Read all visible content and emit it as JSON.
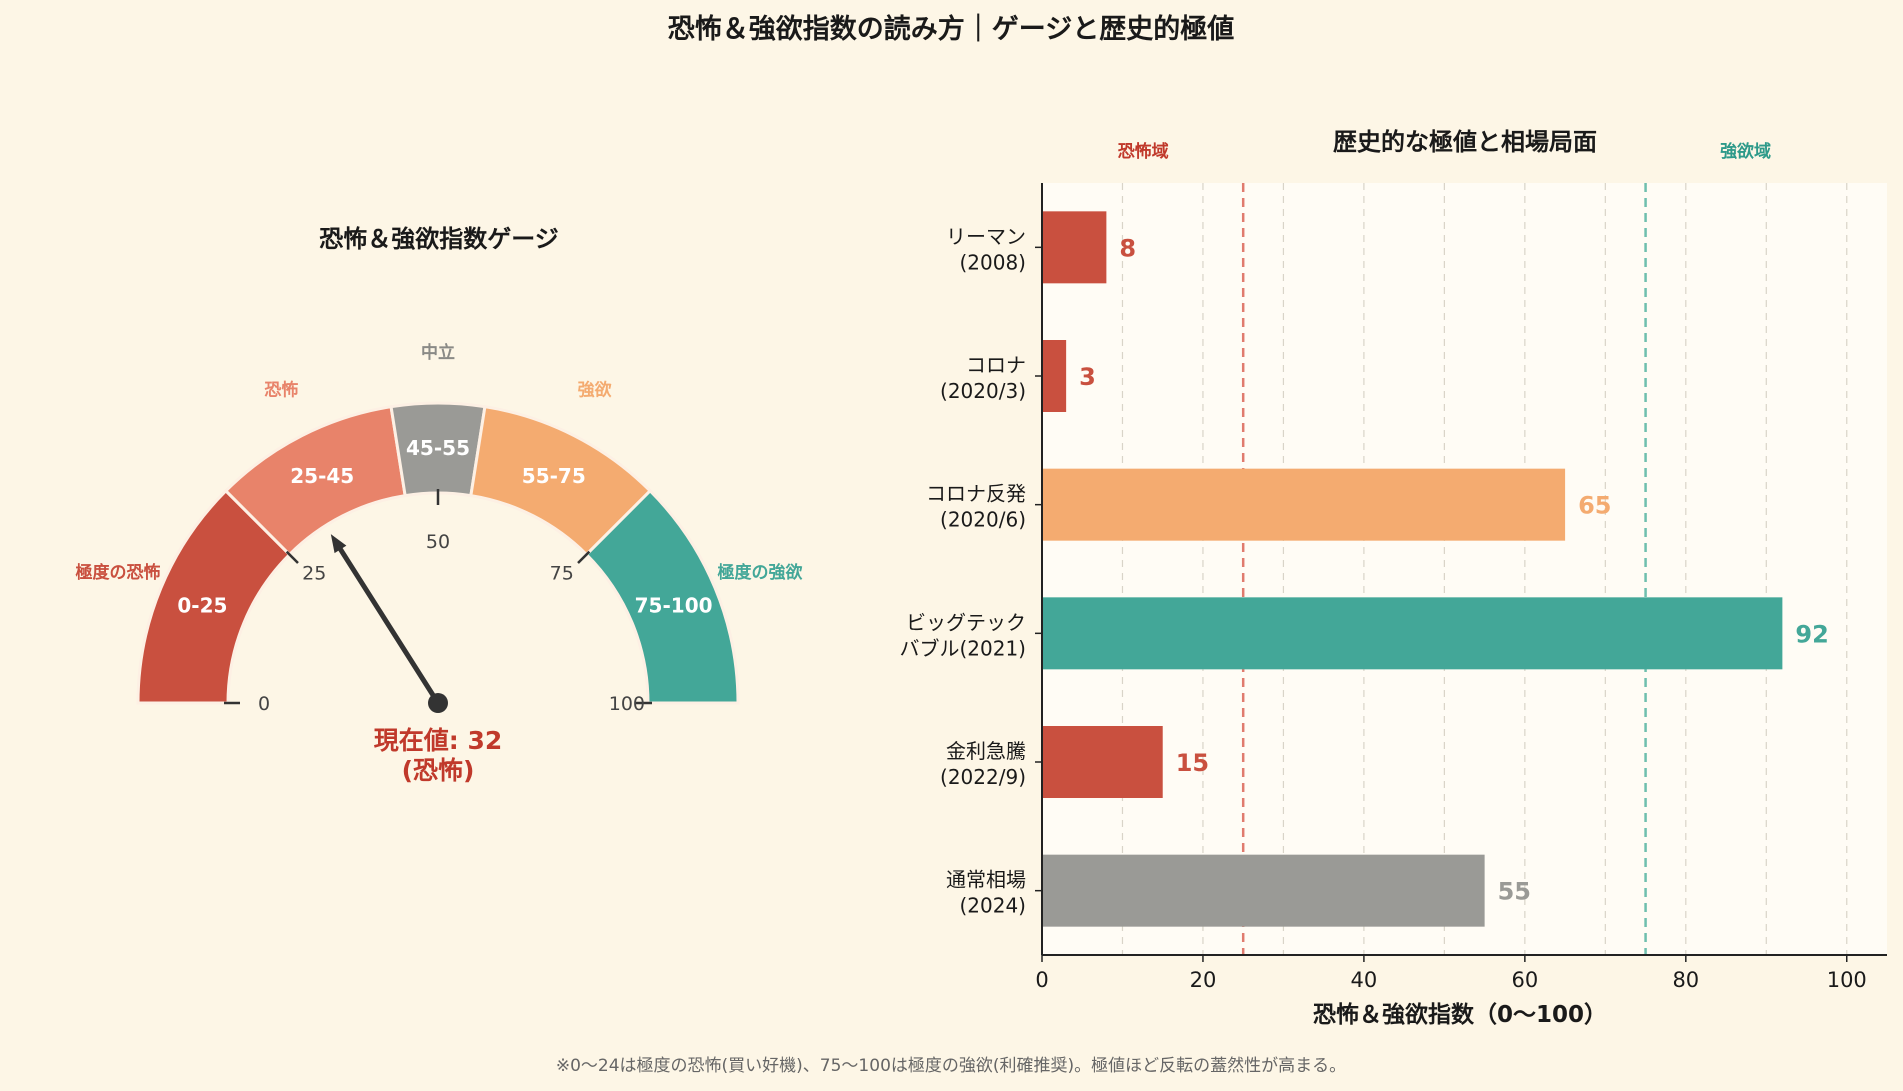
{
  "title": "恐怖＆強欲指数の読み方｜ゲージと歴史的極値",
  "footnote": "※0〜24は極度の恐怖(買い好機)、75〜100は極度の強欲(利確推奨)。極値ほど反転の蓋然性が高まる。",
  "colors": {
    "background": "#fdf6e6",
    "extreme_fear": "#c9503f",
    "fear": "#e8836a",
    "neutral": "#9a9a96",
    "greed": "#f4ab70",
    "extreme_greed": "#43a798",
    "needle": "#333333",
    "reading": "#c0392b"
  },
  "chart_data": [
    {
      "type": "gauge",
      "title": "恐怖＆強欲指数ゲージ",
      "range": [
        0,
        100
      ],
      "segments": [
        {
          "range": [
            0,
            25
          ],
          "label": "0-25",
          "zone": "極度の恐怖",
          "color": "#c9503f"
        },
        {
          "range": [
            25,
            45
          ],
          "label": "25-45",
          "zone": "恐怖",
          "color": "#e8836a"
        },
        {
          "range": [
            45,
            55
          ],
          "label": "45-55",
          "zone": "中立",
          "color": "#9a9a96"
        },
        {
          "range": [
            55,
            75
          ],
          "label": "55-75",
          "zone": "強欲",
          "color": "#f4ab70"
        },
        {
          "range": [
            75,
            100
          ],
          "label": "75-100",
          "zone": "極度の強欲",
          "color": "#43a798"
        }
      ],
      "ticks": [
        0,
        25,
        50,
        75,
        100
      ],
      "value": 32,
      "reading_line1": "現在値: 32",
      "reading_line2": "(恐怖)"
    },
    {
      "type": "bar",
      "orientation": "horizontal",
      "title": "歴史的な極値と相場局面",
      "categories": [
        "リーマン\n(2008)",
        "コロナ\n(2020/3)",
        "コロナ反発\n(2020/6)",
        "ビッグテック\nバブル(2021)",
        "金利急騰\n(2022/9)",
        "通常相場\n(2024)"
      ],
      "values": [
        8,
        3,
        65,
        92,
        15,
        55
      ],
      "bar_colors": [
        "#c9503f",
        "#c9503f",
        "#f4ab70",
        "#43a798",
        "#c9503f",
        "#9a9a96"
      ],
      "xlabel": "恐怖＆強欲指数（0〜100）",
      "xlim": [
        0,
        105
      ],
      "xticks": [
        0,
        20,
        40,
        60,
        80,
        100
      ],
      "grid": true,
      "reference_lines": [
        {
          "x": 25,
          "label": "恐怖域",
          "color": "#e07b6e"
        },
        {
          "x": 75,
          "label": "強欲域",
          "color": "#6fbfae"
        }
      ]
    }
  ]
}
